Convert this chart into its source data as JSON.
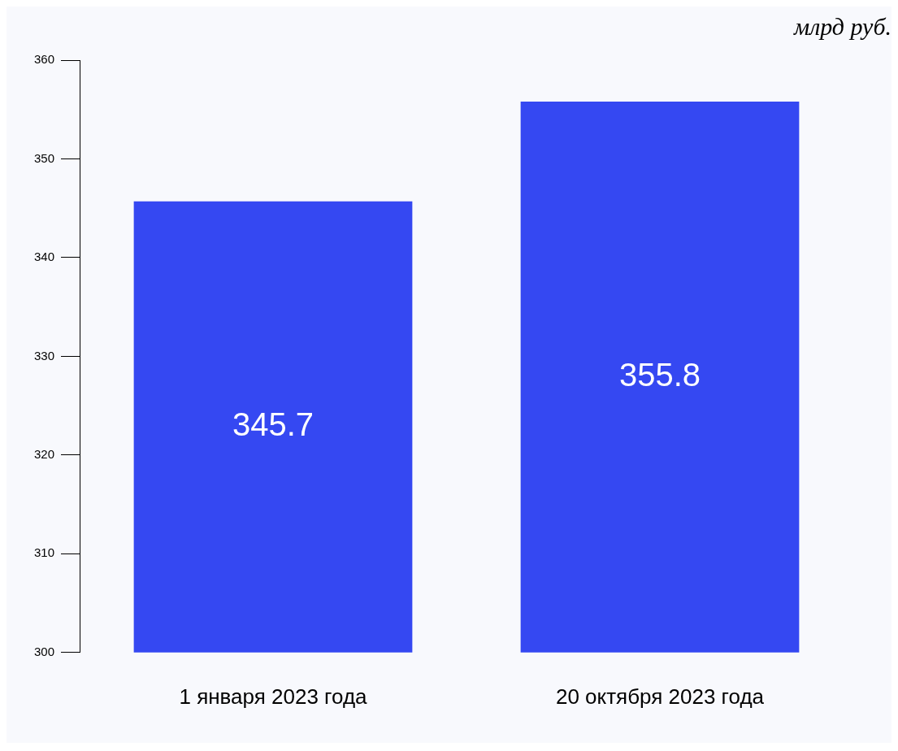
{
  "chart_data": {
    "type": "bar",
    "ylabel": "млрд руб.",
    "categories": [
      "1 января 2023 года",
      "20 октября 2023 года"
    ],
    "values": [
      345.7,
      355.8
    ],
    "color": "#3548f2",
    "ylim": [
      300,
      360
    ],
    "yticks": [
      300,
      310,
      320,
      330,
      340,
      350,
      360
    ],
    "data_labels": true,
    "legend": false,
    "grid": false
  }
}
